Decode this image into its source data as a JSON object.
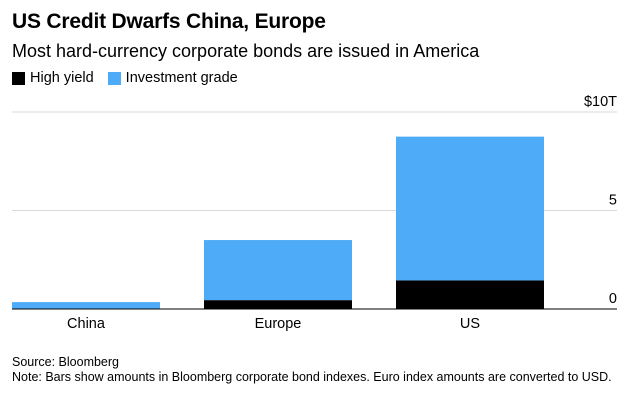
{
  "header": {
    "title": "US Credit Dwarfs China, Europe",
    "subtitle": "Most hard-currency corporate bonds are issued in America"
  },
  "colors": {
    "high_yield": "#000000",
    "investment_grade": "#4eabf7",
    "gridline": "#d9d9d9",
    "axis": "#000000"
  },
  "footer": {
    "source": "Source: Bloomberg",
    "note": "Note: Bars show amounts in Bloomberg corporate bond indexes. Euro index amounts are converted to USD."
  },
  "chart_data": {
    "type": "bar",
    "stacked": true,
    "title": "US Credit Dwarfs China, Europe",
    "subtitle": "Most hard-currency corporate bonds are issued in America",
    "categories": [
      "China",
      "Europe",
      "US"
    ],
    "series": [
      {
        "name": "High yield",
        "values": [
          0.02,
          0.45,
          1.45
        ]
      },
      {
        "name": "Investment grade",
        "values": [
          0.33,
          3.05,
          7.3
        ]
      }
    ],
    "y_ticks": [
      {
        "value": 0,
        "label": "0"
      },
      {
        "value": 5,
        "label": "5"
      },
      {
        "value": 10,
        "label": "$10T"
      }
    ],
    "ylim": [
      0,
      10
    ],
    "xlabel": "",
    "ylabel": "",
    "grid": true,
    "y_axis_side": "right",
    "legend_position": "top-left"
  }
}
